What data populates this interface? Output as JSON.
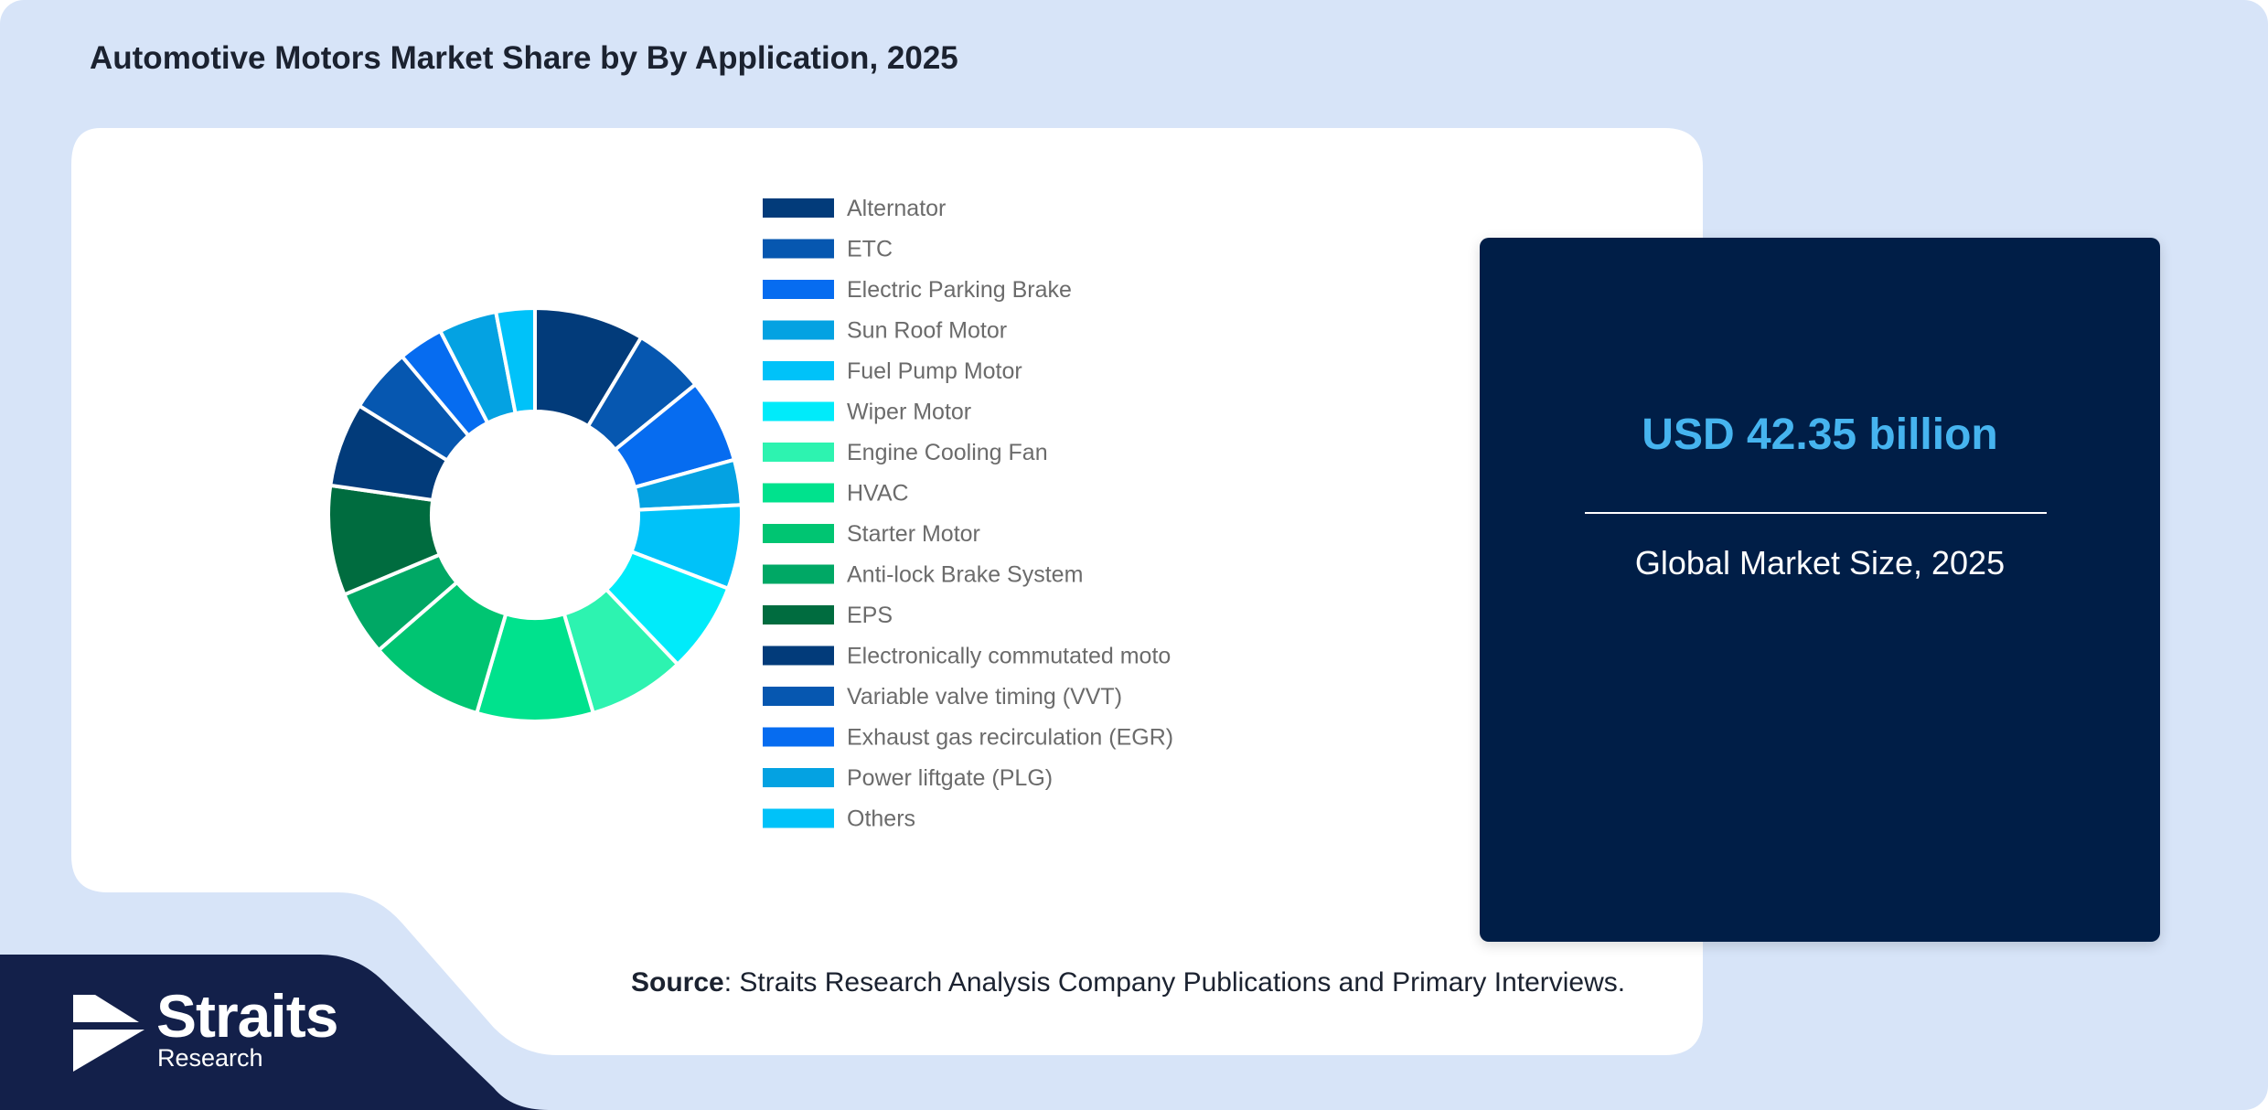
{
  "title": "Automotive Motors Market Share by By Application, 2025",
  "market": {
    "value": "USD 42.35 billion",
    "label": "Global Market Size, 2025",
    "value_color": "#46b4ef",
    "box_color": "#001e47"
  },
  "source": {
    "bold": "Source",
    "text": ": Straits Research Analysis Company Publications and Primary Interviews."
  },
  "logo": {
    "word": "Straits",
    "sub": "Research"
  },
  "colors": {
    "background": "#d7e4f8",
    "card": "#ffffff",
    "navy": "#13204a"
  },
  "chart_data": {
    "type": "pie",
    "donut": true,
    "legend_position": "right",
    "categories": [
      "Alternator",
      "ETC",
      "Electric Parking Brake",
      "Sun Roof Motor",
      "Fuel Pump Motor",
      "Wiper Motor",
      "Engine Cooling Fan",
      "HVAC",
      "Starter Motor",
      "Anti-lock Brake System",
      "EPS",
      "Electronically commutated moto",
      "Variable valve timing (VVT)",
      "Exhaust gas recirculation (EGR)",
      "Power liftgate (PLG)",
      "Others"
    ],
    "values": [
      8.5,
      5.5,
      6.5,
      3.5,
      6.5,
      7.0,
      7.5,
      9.0,
      9.0,
      5.0,
      8.5,
      6.5,
      5.0,
      3.5,
      4.5,
      3.0
    ],
    "colors": [
      "#023b7a",
      "#0657b0",
      "#066cf0",
      "#04a2e2",
      "#00c2f9",
      "#00ebfa",
      "#2df3b0",
      "#00e28d",
      "#00c572",
      "#00a865",
      "#006c3f",
      "#023b7a",
      "#0657b0",
      "#066cf0",
      "#04a2e2",
      "#00c2f9"
    ]
  }
}
